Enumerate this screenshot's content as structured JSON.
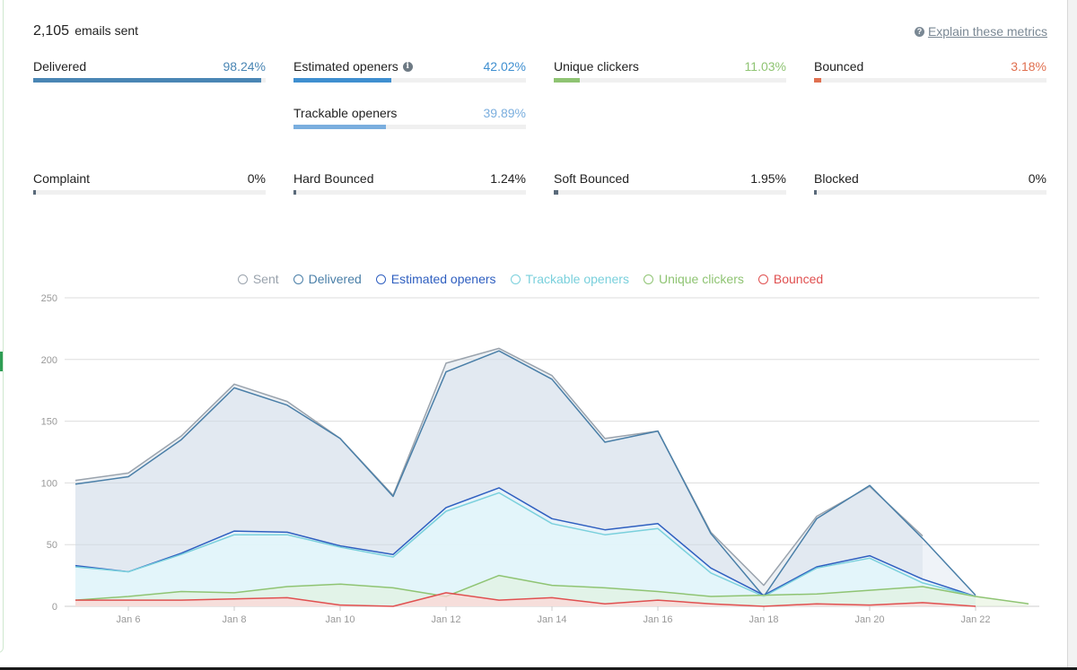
{
  "summary": {
    "emails_sent_count": "2,105",
    "emails_sent_label": "emails sent"
  },
  "explain_link": "Explain these metrics",
  "metrics": [
    {
      "label": "Delivered",
      "value": "98.24%",
      "percent": 98.24,
      "color": "#4a86b4"
    },
    {
      "label": "Estimated openers",
      "value": "42.02%",
      "percent": 42.02,
      "color": "#3f8fd0",
      "has_info": true
    },
    {
      "label": "Unique clickers",
      "value": "11.03%",
      "percent": 11.03,
      "color": "#8fc473"
    },
    {
      "label": "Bounced",
      "value": "3.18%",
      "percent": 3.18,
      "color": "#e07050"
    },
    {
      "label": "Trackable openers",
      "value": "39.89%",
      "percent": 39.89,
      "color": "#7aaede"
    },
    {
      "label": "Complaint",
      "value": "0%",
      "percent": 0,
      "color": "#5a6a7a"
    },
    {
      "label": "Hard Bounced",
      "value": "1.24%",
      "percent": 1.24,
      "color": "#5a6a7a"
    },
    {
      "label": "Soft Bounced",
      "value": "1.95%",
      "percent": 1.95,
      "color": "#5a6a7a"
    },
    {
      "label": "Blocked",
      "value": "0%",
      "percent": 0,
      "color": "#5a6a7a"
    }
  ],
  "chart_data": {
    "type": "area",
    "x": [
      "Jan 5",
      "Jan 6",
      "Jan 7",
      "Jan 8",
      "Jan 9",
      "Jan 10",
      "Jan 11",
      "Jan 12",
      "Jan 13",
      "Jan 14",
      "Jan 15",
      "Jan 16",
      "Jan 17",
      "Jan 18",
      "Jan 19",
      "Jan 20",
      "Jan 21",
      "Jan 22",
      "Jan 23"
    ],
    "x_tick_labels": [
      "Jan 6",
      "Jan 8",
      "Jan 10",
      "Jan 12",
      "Jan 14",
      "Jan 16",
      "Jan 18",
      "Jan 20",
      "Jan 22"
    ],
    "y_ticks": [
      0,
      50,
      100,
      150,
      200,
      250
    ],
    "ylim": [
      0,
      250
    ],
    "grid": true,
    "legend_position": "top",
    "series": [
      {
        "name": "Sent",
        "color": "#9aa3ad",
        "values": [
          102,
          108,
          138,
          180,
          166,
          136,
          90,
          197,
          209,
          187,
          136,
          142,
          60,
          17,
          73,
          97,
          57,
          null,
          null
        ]
      },
      {
        "name": "Delivered",
        "color": "#4a7fa8",
        "values": [
          99,
          105,
          135,
          177,
          163,
          136,
          89,
          190,
          207,
          184,
          133,
          142,
          59,
          8,
          71,
          98,
          55,
          9,
          null
        ]
      },
      {
        "name": "Estimated openers",
        "color": "#2f5fc0",
        "values": [
          33,
          28,
          43,
          61,
          60,
          49,
          42,
          80,
          96,
          71,
          62,
          67,
          31,
          9,
          32,
          41,
          22,
          8,
          null
        ]
      },
      {
        "name": "Trackable openers",
        "color": "#7ad0dc",
        "values": [
          32,
          28,
          42,
          58,
          58,
          48,
          40,
          77,
          92,
          67,
          58,
          63,
          27,
          8,
          31,
          39,
          19,
          8,
          null
        ]
      },
      {
        "name": "Unique clickers",
        "color": "#8fc473",
        "values": [
          5,
          8,
          12,
          11,
          16,
          18,
          15,
          8,
          25,
          17,
          15,
          12,
          8,
          9,
          10,
          13,
          16,
          8,
          2
        ]
      },
      {
        "name": "Bounced",
        "color": "#e05050",
        "values": [
          5,
          5,
          5,
          6,
          7,
          1,
          0,
          11,
          5,
          7,
          2,
          5,
          2,
          0,
          2,
          1,
          3,
          0,
          null
        ]
      }
    ]
  }
}
